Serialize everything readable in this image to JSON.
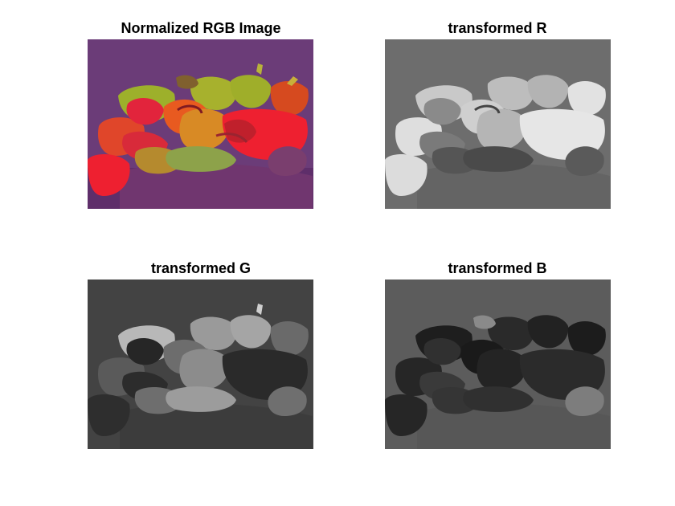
{
  "figure": {
    "panels": [
      {
        "title": "Normalized RGB Image",
        "kind": "normalized-rgb-peppers-image"
      },
      {
        "title": "transformed R",
        "kind": "grayscale-peppers-red-channel"
      },
      {
        "title": "transformed G",
        "kind": "grayscale-peppers-green-channel"
      },
      {
        "title": "transformed B",
        "kind": "grayscale-peppers-blue-channel"
      }
    ]
  },
  "colors": {
    "background": "#ffffff",
    "rgb_background": "#6a3c74",
    "rgb_red": "#e8233a",
    "rgb_green": "#9aad2a",
    "rgb_orange": "#d9561f",
    "r_background": "#6e6e6e",
    "g_background": "#424242",
    "b_background": "#5c5c5c"
  }
}
